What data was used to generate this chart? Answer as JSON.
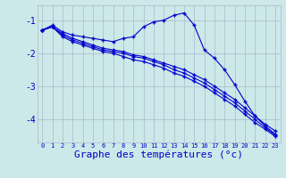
{
  "bg_color": "#cce8e8",
  "grid_color": "#aab8cc",
  "line_color": "#0000cc",
  "xlabel": "Graphe des températures (°c)",
  "xlabel_fontsize": 8,
  "ylim": [
    -4.7,
    -0.55
  ],
  "xlim": [
    -0.5,
    23.5
  ],
  "yticks": [
    -4,
    -3,
    -2,
    -1
  ],
  "xticks": [
    0,
    1,
    2,
    3,
    4,
    5,
    6,
    7,
    8,
    9,
    10,
    11,
    12,
    13,
    14,
    15,
    16,
    17,
    18,
    19,
    20,
    21,
    22,
    23
  ],
  "curve1_x": [
    0,
    1,
    2,
    3,
    4,
    5,
    6,
    7,
    8,
    9,
    10,
    11,
    12,
    13,
    14,
    15,
    16,
    17,
    18,
    19,
    20,
    21,
    22,
    23
  ],
  "curve1_y": [
    -1.3,
    -1.15,
    -1.35,
    -1.45,
    -1.5,
    -1.55,
    -1.6,
    -1.65,
    -1.55,
    -1.5,
    -1.2,
    -1.05,
    -1.0,
    -0.85,
    -0.78,
    -1.15,
    -1.9,
    -2.15,
    -2.5,
    -2.95,
    -3.45,
    -3.9,
    -4.15,
    -4.35
  ],
  "curve2_x": [
    0,
    1,
    2,
    3,
    4,
    5,
    6,
    7,
    8,
    9,
    10,
    11,
    12,
    13,
    14,
    15,
    16,
    17,
    18,
    19,
    20,
    21,
    22,
    23
  ],
  "curve2_y": [
    -1.3,
    -1.2,
    -1.4,
    -1.55,
    -1.65,
    -1.75,
    -1.85,
    -1.9,
    -1.95,
    -2.05,
    -2.1,
    -2.2,
    -2.3,
    -2.4,
    -2.5,
    -2.65,
    -2.8,
    -3.0,
    -3.2,
    -3.4,
    -3.65,
    -3.9,
    -4.2,
    -4.45
  ],
  "curve3_x": [
    0,
    1,
    2,
    3,
    4,
    5,
    6,
    7,
    8,
    9,
    10,
    11,
    12,
    13,
    14,
    15,
    16,
    17,
    18,
    19,
    20,
    21,
    22,
    23
  ],
  "curve3_y": [
    -1.3,
    -1.2,
    -1.45,
    -1.6,
    -1.7,
    -1.8,
    -1.9,
    -1.95,
    -2.0,
    -2.1,
    -2.15,
    -2.25,
    -2.35,
    -2.5,
    -2.6,
    -2.75,
    -2.9,
    -3.1,
    -3.3,
    -3.5,
    -3.75,
    -4.0,
    -4.25,
    -4.48
  ],
  "curve4_x": [
    0,
    1,
    2,
    3,
    4,
    5,
    6,
    7,
    8,
    9,
    10,
    11,
    12,
    13,
    14,
    15,
    16,
    17,
    18,
    19,
    20,
    21,
    22,
    23
  ],
  "curve4_y": [
    -1.3,
    -1.2,
    -1.5,
    -1.65,
    -1.75,
    -1.85,
    -1.95,
    -2.0,
    -2.1,
    -2.2,
    -2.25,
    -2.35,
    -2.45,
    -2.6,
    -2.7,
    -2.85,
    -3.0,
    -3.2,
    -3.4,
    -3.6,
    -3.85,
    -4.1,
    -4.3,
    -4.52
  ]
}
